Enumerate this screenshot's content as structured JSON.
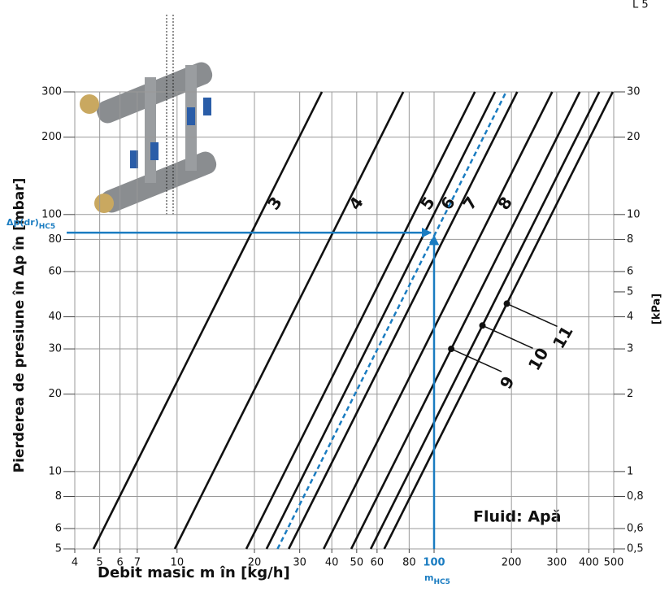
{
  "chart_data": {
    "type": "line",
    "corner_label": "L 5",
    "xlabel": "Debit masic m în [kg/h]",
    "ylabel": "Pierderea de presiune în  Δp în [mbar]",
    "y2label": "[kPa]",
    "annotation": "Fluid: Apă",
    "log_x": true,
    "log_y": true,
    "grid": true,
    "xlim": [
      4,
      500
    ],
    "xticks": [
      4,
      5,
      6,
      7,
      10,
      20,
      30,
      40,
      50,
      60,
      80,
      100,
      200,
      300,
      400,
      500
    ],
    "ylim": [
      5,
      300
    ],
    "yticks": [
      5,
      6,
      8,
      10,
      20,
      30,
      40,
      60,
      80,
      100,
      200,
      300
    ],
    "y2lim": [
      0.5,
      30
    ],
    "y2ticks": [
      {
        "value": 0.5,
        "label": "0,5"
      },
      {
        "value": 0.6,
        "label": "0,6"
      },
      {
        "value": 0.8,
        "label": "0,8"
      },
      1,
      2,
      3,
      4,
      5,
      6,
      8,
      10,
      20,
      30
    ],
    "series": [
      {
        "name": "3",
        "color": "#111111",
        "x": [
          4.73,
          36.6
        ],
        "values": [
          5,
          300
        ]
      },
      {
        "name": "4",
        "color": "#111111",
        "x": [
          9.8,
          75.9
        ],
        "values": [
          5,
          300
        ]
      },
      {
        "name": "5",
        "color": "#111111",
        "x": [
          18.6,
          144.1
        ],
        "values": [
          5,
          300
        ]
      },
      {
        "name": "6",
        "color": "#111111",
        "x": [
          22.3,
          172.7
        ],
        "values": [
          5,
          300
        ]
      },
      {
        "name": "7",
        "color": "#111111",
        "x": [
          27.2,
          210.7
        ],
        "values": [
          5,
          300
        ]
      },
      {
        "name": "8",
        "color": "#111111",
        "x": [
          37.2,
          288.2
        ],
        "values": [
          5,
          300
        ]
      },
      {
        "name": "9",
        "color": "#111111",
        "x": [
          47.6,
          368.7
        ],
        "values": [
          5,
          300
        ]
      },
      {
        "name": "10",
        "color": "#111111",
        "x": [
          56.7,
          439.2
        ],
        "values": [
          5,
          300
        ]
      },
      {
        "name": "11",
        "color": "#111111",
        "x": [
          64,
          495.7
        ],
        "values": [
          5,
          300
        ]
      },
      {
        "color": "#1a7cc1",
        "dashed": true,
        "x": [
          24.6,
          190.6
        ],
        "values": [
          5,
          300
        ]
      }
    ],
    "hc5": {
      "dp_label": "Δp(dr)",
      "dp_sub": "HC5",
      "m_label": "m",
      "m_sub": "HC5",
      "dp": 85,
      "m": 100,
      "color": "#1a7cc1"
    }
  }
}
